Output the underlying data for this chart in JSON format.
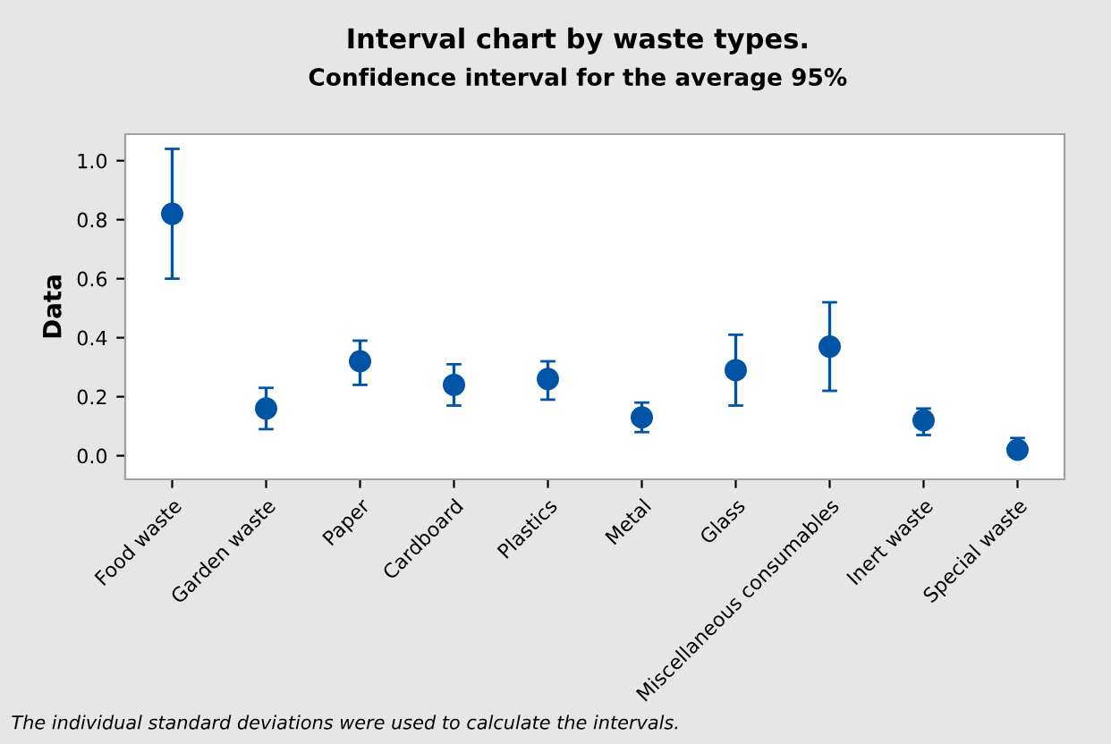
{
  "chart_data": {
    "type": "scatter",
    "title": "Interval chart by waste types.",
    "subtitle": "Confidence interval for the average 95%",
    "ylabel": "Data",
    "categories": [
      "Food waste",
      "Garden waste",
      "Paper",
      "Cardboard",
      "Plastics",
      "Metal",
      "Glass",
      "Miscellaneous consumables",
      "Inert waste",
      "Special waste"
    ],
    "values": [
      0.82,
      0.16,
      0.32,
      0.24,
      0.26,
      0.13,
      0.29,
      0.37,
      0.12,
      0.02
    ],
    "errors": [
      [
        0.6,
        1.04
      ],
      [
        0.09,
        0.23
      ],
      [
        0.24,
        0.39
      ],
      [
        0.17,
        0.31
      ],
      [
        0.19,
        0.32
      ],
      [
        0.08,
        0.18
      ],
      [
        0.17,
        0.41
      ],
      [
        0.22,
        0.52
      ],
      [
        0.07,
        0.16
      ],
      [
        0.0,
        0.06
      ]
    ],
    "color": "#0054a6",
    "marker": "circle",
    "grid": false,
    "legend": false,
    "ylim": [
      -0.08,
      1.09
    ],
    "yticks": [
      {
        "value": 0,
        "label": "0.0"
      },
      0.2,
      0.4,
      0.6,
      0.8,
      {
        "value": 1,
        "label": "1.0"
      }
    ],
    "annotations": [
      "The individual standard deviations were used to calculate the intervals."
    ]
  }
}
